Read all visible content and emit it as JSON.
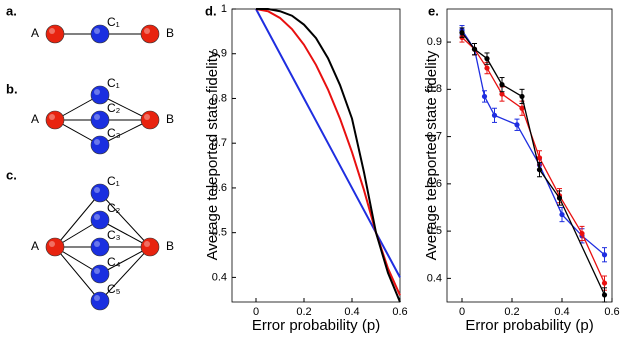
{
  "diagrams": [
    {
      "label": "a.",
      "left": {
        "label": "A",
        "color": "#e8230f"
      },
      "right": {
        "label": "B",
        "color": "#e8230f"
      },
      "middle": [
        {
          "label": "C₁",
          "color": "#1a2fe0"
        }
      ]
    },
    {
      "label": "b.",
      "left": {
        "label": "A",
        "color": "#e8230f"
      },
      "right": {
        "label": "B",
        "color": "#e8230f"
      },
      "middle": [
        {
          "label": "C₁",
          "color": "#1a2fe0"
        },
        {
          "label": "C₂",
          "color": "#1a2fe0"
        },
        {
          "label": "C₃",
          "color": "#1a2fe0"
        }
      ]
    },
    {
      "label": "c.",
      "left": {
        "label": "A",
        "color": "#e8230f"
      },
      "right": {
        "label": "B",
        "color": "#e8230f"
      },
      "middle": [
        {
          "label": "C₁",
          "color": "#1a2fe0"
        },
        {
          "label": "C₂",
          "color": "#1a2fe0"
        },
        {
          "label": "C₃",
          "color": "#1a2fe0"
        },
        {
          "label": "C₄",
          "color": "#1a2fe0"
        },
        {
          "label": "C₅",
          "color": "#1a2fe0"
        }
      ]
    }
  ],
  "chart_data": [
    {
      "type": "line",
      "label": "d.",
      "xlabel": "Error probability (p)",
      "ylabel": "Average teleported state fidelity",
      "xlim": [
        -0.1,
        0.6
      ],
      "ylim": [
        0.345,
        1
      ],
      "xticks": [
        0,
        0.2,
        0.4,
        0.6
      ],
      "yticks": [
        0.4,
        0.5,
        0.6,
        0.7,
        0.8,
        0.9,
        1
      ],
      "x": [
        0,
        0.05,
        0.1,
        0.15,
        0.2,
        0.25,
        0.3,
        0.35,
        0.4,
        0.45,
        0.5,
        0.55,
        0.6
      ],
      "series": [
        {
          "color": "#1f2ee0",
          "values": [
            1,
            0.95,
            0.9,
            0.85,
            0.8,
            0.75,
            0.7,
            0.65,
            0.6,
            0.55,
            0.5,
            0.45,
            0.4
          ]
        },
        {
          "color": "#e81010",
          "values": [
            1,
            0.995,
            0.98,
            0.955,
            0.92,
            0.875,
            0.82,
            0.755,
            0.68,
            0.595,
            0.5,
            0.42,
            0.36
          ]
        },
        {
          "color": "#000000",
          "values": [
            1,
            1,
            0.995,
            0.985,
            0.965,
            0.935,
            0.89,
            0.83,
            0.755,
            0.635,
            0.5,
            0.41,
            0.345
          ]
        }
      ]
    },
    {
      "type": "errorline",
      "label": "e.",
      "xlabel": "Error probability (p)",
      "ylabel": "Average teleported state fidelity",
      "xlim": [
        -0.06,
        0.6
      ],
      "ylim": [
        0.35,
        0.97
      ],
      "xticks": [
        0,
        0.2,
        0.4,
        0.6
      ],
      "yticks": [
        0.4,
        0.5,
        0.6,
        0.7,
        0.8,
        0.9
      ],
      "series": [
        {
          "color": "#1f2ee0",
          "x": [
            0,
            0.05,
            0.09,
            0.13,
            0.22,
            0.31,
            0.4,
            0.48,
            0.57
          ],
          "values": [
            0.925,
            0.885,
            0.785,
            0.745,
            0.725,
            0.64,
            0.535,
            0.49,
            0.45
          ],
          "errors": [
            0.01,
            0.012,
            0.012,
            0.015,
            0.012,
            0.012,
            0.015,
            0.015,
            0.015
          ]
        },
        {
          "color": "#e81010",
          "x": [
            0,
            0.05,
            0.1,
            0.16,
            0.24,
            0.31,
            0.39,
            0.48,
            0.57
          ],
          "values": [
            0.91,
            0.885,
            0.845,
            0.79,
            0.76,
            0.655,
            0.575,
            0.495,
            0.39
          ],
          "errors": [
            0.01,
            0.012,
            0.012,
            0.015,
            0.015,
            0.015,
            0.015,
            0.015,
            0.015
          ]
        },
        {
          "color": "#000000",
          "x": [
            0,
            0.05,
            0.1,
            0.16,
            0.24,
            0.31,
            0.39,
            0.57
          ],
          "values": [
            0.92,
            0.885,
            0.865,
            0.81,
            0.785,
            0.63,
            0.57,
            0.365
          ],
          "errors": [
            0.01,
            0.012,
            0.012,
            0.015,
            0.015,
            0.015,
            0.015,
            0.015
          ]
        }
      ]
    }
  ]
}
